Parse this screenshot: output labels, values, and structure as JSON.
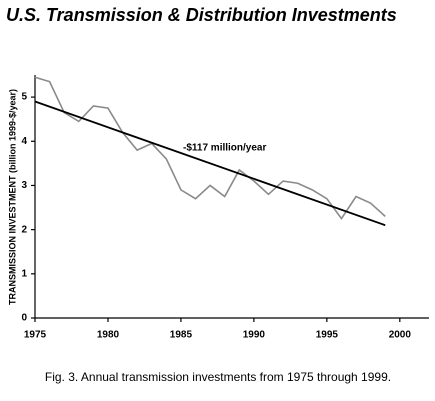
{
  "chart_data": {
    "type": "line",
    "title": "U.S. Transmission & Distribution Investments",
    "y_label": "TRANSMISSION INVESTMENT (billion 1999-$/year)",
    "annotation": "-$117 million/year",
    "caption": "Fig. 3. Annual transmission investments from 1975 through 1999.",
    "series": [
      {
        "color": "#8a8a8a",
        "x": [
          1975,
          1976,
          1977,
          1978,
          1979,
          1980,
          1981,
          1982,
          1983,
          1984,
          1985,
          1986,
          1987,
          1988,
          1989,
          1990,
          1991,
          1992,
          1993,
          1994,
          1995,
          1996,
          1997,
          1998,
          1999
        ],
        "values": [
          5.45,
          5.35,
          4.65,
          4.45,
          4.8,
          4.75,
          4.2,
          3.8,
          3.95,
          3.6,
          2.9,
          2.7,
          3.0,
          2.75,
          3.35,
          3.1,
          2.8,
          3.1,
          3.05,
          2.9,
          2.7,
          2.25,
          2.75,
          2.6,
          2.3
        ]
      },
      {
        "color": "#000000",
        "x": [
          1975,
          1999
        ],
        "values": [
          4.9,
          2.1
        ]
      }
    ],
    "xlim": [
      1975,
      2002
    ],
    "xticks": [
      1975,
      1980,
      1985,
      1990,
      1995,
      2000
    ],
    "ylim": [
      0,
      5.5
    ],
    "yticks": [
      0,
      1,
      2,
      3,
      4,
      5
    ]
  }
}
